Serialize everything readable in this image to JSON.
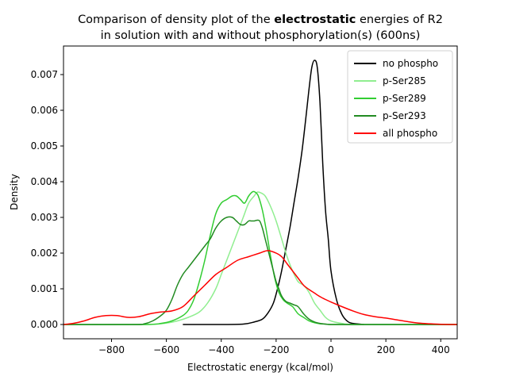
{
  "chart_data": {
    "type": "line",
    "title_line1_pre": "Comparison of density plot of the ",
    "title_line1_bold": "electrostatic",
    "title_line1_post": " energies of R2",
    "title_line2": "in solution with and without phosphorylation(s) (600ns)",
    "xlabel": "Electrostatic energy (kcal/mol)",
    "ylabel": "Density",
    "xlim": [
      -975,
      460
    ],
    "ylim": [
      -0.0004,
      0.0078
    ],
    "xticks": [
      -800,
      -600,
      -400,
      -200,
      0,
      200,
      400
    ],
    "xtick_labels": [
      "−800",
      "−600",
      "−400",
      "−200",
      "0",
      "200",
      "400"
    ],
    "yticks": [
      0.0,
      0.001,
      0.002,
      0.003,
      0.004,
      0.005,
      0.006,
      0.007
    ],
    "ytick_labels": [
      "0.000",
      "0.001",
      "0.002",
      "0.003",
      "0.004",
      "0.005",
      "0.006",
      "0.007"
    ],
    "grid": false,
    "legend_position": "top-right",
    "series": [
      {
        "name": "no phospho",
        "color": "#000000",
        "x": [
          -540,
          -400,
          -320,
          -280,
          -250,
          -230,
          -210,
          -195,
          -180,
          -165,
          -150,
          -135,
          -120,
          -105,
          -90,
          -80,
          -70,
          -60,
          -50,
          -40,
          -30,
          -20,
          -10,
          0,
          20,
          40,
          60,
          80,
          120
        ],
        "y": [
          0.0,
          0.0,
          1e-05,
          7e-05,
          0.00015,
          0.00032,
          0.0006,
          0.001,
          0.0015,
          0.0021,
          0.0027,
          0.0034,
          0.0041,
          0.0049,
          0.0059,
          0.0066,
          0.0072,
          0.0074,
          0.0072,
          0.0062,
          0.0045,
          0.0032,
          0.0024,
          0.0015,
          0.0007,
          0.00028,
          9e-05,
          3e-05,
          0.0
        ]
      },
      {
        "name": "p-Ser285",
        "color": "#90ee90",
        "x": [
          -975,
          -700,
          -640,
          -600,
          -560,
          -520,
          -480,
          -450,
          -420,
          -400,
          -380,
          -360,
          -340,
          -320,
          -300,
          -280,
          -270,
          -260,
          -240,
          -220,
          -200,
          -180,
          -160,
          -140,
          -120,
          -100,
          -80,
          -60,
          -40,
          -20,
          0,
          40,
          100,
          460
        ],
        "y": [
          0.0,
          0.0,
          1e-05,
          4e-05,
          0.0001,
          0.0002,
          0.00035,
          0.0006,
          0.001,
          0.0014,
          0.0018,
          0.0022,
          0.0026,
          0.003,
          0.0034,
          0.0036,
          0.0037,
          0.0037,
          0.0036,
          0.0033,
          0.0029,
          0.0024,
          0.0019,
          0.0015,
          0.0012,
          0.0011,
          0.0009,
          0.0006,
          0.0004,
          0.0002,
          0.0001,
          3e-05,
          0.0,
          0.0
        ]
      },
      {
        "name": "p-Ser289",
        "color": "#32cd32",
        "x": [
          -975,
          -680,
          -620,
          -580,
          -540,
          -520,
          -500,
          -480,
          -460,
          -440,
          -420,
          -400,
          -380,
          -360,
          -345,
          -330,
          -315,
          -300,
          -285,
          -275,
          -265,
          -250,
          -235,
          -220,
          -205,
          -190,
          -175,
          -160,
          -140,
          -120,
          -100,
          -80,
          -60,
          -40,
          -20,
          0,
          40,
          100,
          460
        ],
        "y": [
          0.0,
          0.0,
          3e-05,
          0.0001,
          0.00025,
          0.0004,
          0.0007,
          0.0012,
          0.0018,
          0.0025,
          0.0031,
          0.0034,
          0.0035,
          0.0036,
          0.0036,
          0.0035,
          0.0034,
          0.0036,
          0.00372,
          0.0037,
          0.0036,
          0.0032,
          0.0026,
          0.0019,
          0.0013,
          0.0009,
          0.0007,
          0.0006,
          0.0005,
          0.0003,
          0.0002,
          0.0001,
          5e-05,
          2e-05,
          1e-05,
          0.0,
          0.0,
          0.0,
          0.0
        ]
      },
      {
        "name": "p-Ser293",
        "color": "#228b22",
        "x": [
          -975,
          -720,
          -680,
          -650,
          -620,
          -600,
          -580,
          -560,
          -540,
          -520,
          -500,
          -480,
          -460,
          -440,
          -420,
          -400,
          -380,
          -360,
          -345,
          -330,
          -315,
          -300,
          -290,
          -280,
          -270,
          -260,
          -250,
          -240,
          -230,
          -220,
          -210,
          -200,
          -190,
          -180,
          -165,
          -150,
          -135,
          -120,
          -100,
          -80,
          -60,
          -40,
          -20,
          0,
          40,
          100,
          460
        ],
        "y": [
          0.0,
          0.0,
          2e-05,
          0.0001,
          0.00025,
          0.0004,
          0.0007,
          0.0011,
          0.0014,
          0.0016,
          0.0018,
          0.002,
          0.0022,
          0.0024,
          0.0027,
          0.0029,
          0.003,
          0.003,
          0.0029,
          0.0028,
          0.0028,
          0.0029,
          0.0029,
          0.0029,
          0.00292,
          0.0029,
          0.0027,
          0.0024,
          0.0021,
          0.0018,
          0.0015,
          0.0012,
          0.001,
          0.0008,
          0.00065,
          0.0006,
          0.00055,
          0.0005,
          0.0003,
          0.00015,
          7e-05,
          3e-05,
          1e-05,
          0.0,
          0.0,
          0.0,
          0.0
        ]
      },
      {
        "name": "all phospho",
        "color": "#ff0000",
        "x": [
          -975,
          -940,
          -900,
          -860,
          -820,
          -780,
          -740,
          -700,
          -660,
          -620,
          -580,
          -540,
          -500,
          -460,
          -420,
          -380,
          -340,
          -300,
          -260,
          -230,
          -200,
          -180,
          -160,
          -140,
          -120,
          -100,
          -80,
          -60,
          -40,
          -20,
          0,
          40,
          80,
          120,
          160,
          200,
          240,
          280,
          320,
          360,
          400,
          440,
          460
        ],
        "y": [
          0.0,
          3e-05,
          0.0001,
          0.0002,
          0.00025,
          0.00025,
          0.0002,
          0.00022,
          0.0003,
          0.00035,
          0.00038,
          0.0005,
          0.0008,
          0.0011,
          0.0014,
          0.0016,
          0.0018,
          0.0019,
          0.002,
          0.00207,
          0.002,
          0.0019,
          0.0017,
          0.0015,
          0.0013,
          0.0011,
          0.00098,
          0.00088,
          0.00078,
          0.0007,
          0.00063,
          0.0005,
          0.00038,
          0.00028,
          0.00022,
          0.00018,
          0.00013,
          8e-05,
          4e-05,
          2e-05,
          5e-06,
          0.0,
          0.0
        ]
      }
    ]
  }
}
